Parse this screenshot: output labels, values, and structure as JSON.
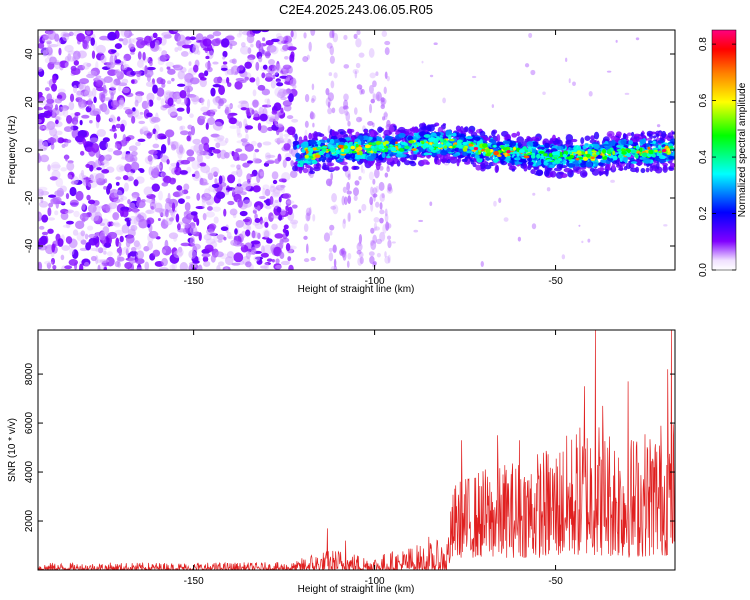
{
  "title": "C2E4.2025.243.06.05.R05",
  "colors": {
    "background": "#ffffff",
    "snr_line": "#e02020",
    "spec_main": "#7a2ee8",
    "frame": "#000000"
  },
  "chart_data": [
    {
      "type": "heatmap",
      "name": "spectrogram",
      "xlabel": "Height of straight line (km)",
      "ylabel": "Frequency (Hz)",
      "xlim": [
        -193,
        -17
      ],
      "ylim": [
        -50,
        50
      ],
      "xticks": [
        -150,
        -100,
        -50
      ],
      "yticks": [
        -40,
        -20,
        0,
        20,
        40
      ],
      "colorbar": {
        "label": "Normalized spectral amplitude",
        "range": [
          0,
          0.85
        ],
        "ticks": [
          0.0,
          0.2,
          0.4,
          0.6,
          0.8
        ],
        "colormap": [
          "#ffffff",
          "#8000ff",
          "#0000ff",
          "#00ffff",
          "#00ff00",
          "#ffff00",
          "#ff8000",
          "#ff0000",
          "#ff00ff"
        ]
      },
      "features": {
        "noise_region_x": [
          -193,
          -122
        ],
        "signal_track_x": [
          -122,
          -17
        ],
        "signal_track_freq_hz": [
          [
            -121,
            -2
          ],
          [
            -110,
            0
          ],
          [
            -100,
            1
          ],
          [
            -90,
            2
          ],
          [
            -80,
            3
          ],
          [
            -70,
            0
          ],
          [
            -60,
            -1
          ],
          [
            -50,
            -3
          ],
          [
            -40,
            -2
          ],
          [
            -30,
            -1
          ],
          [
            -17,
            0
          ]
        ],
        "peak_amplitude": 0.85
      }
    },
    {
      "type": "line",
      "name": "snr",
      "xlabel": "Height of straight line (km)",
      "ylabel": "SNR (10 * v/v)",
      "xlim": [
        -193,
        -17
      ],
      "ylim": [
        0,
        9800
      ],
      "xticks": [
        -150,
        -100,
        -50
      ],
      "yticks": [
        2000,
        4000,
        6000,
        8000
      ],
      "envelope": [
        {
          "x": -193,
          "low": 0,
          "high": 300
        },
        {
          "x": -122,
          "low": 0,
          "high": 320
        },
        {
          "x": -118,
          "low": 0,
          "high": 700
        },
        {
          "x": -110,
          "low": 0,
          "high": 900
        },
        {
          "x": -105,
          "low": 0,
          "high": 700
        },
        {
          "x": -100,
          "low": 0,
          "high": 600
        },
        {
          "x": -90,
          "low": 0,
          "high": 1000
        },
        {
          "x": -80,
          "low": 0,
          "high": 1300
        },
        {
          "x": -78,
          "low": 500,
          "high": 3600
        },
        {
          "x": -70,
          "low": 500,
          "high": 4200
        },
        {
          "x": -60,
          "low": 500,
          "high": 4600
        },
        {
          "x": -50,
          "low": 500,
          "high": 5200
        },
        {
          "x": -40,
          "low": 600,
          "high": 6400
        },
        {
          "x": -30,
          "low": 500,
          "high": 5500
        },
        {
          "x": -17,
          "low": 600,
          "high": 6500
        }
      ],
      "peaks": [
        {
          "x": -113,
          "y": 1700
        },
        {
          "x": -108,
          "y": 1200
        },
        {
          "x": -85,
          "y": 1350
        },
        {
          "x": -76,
          "y": 5300
        },
        {
          "x": -66,
          "y": 5500
        },
        {
          "x": -60,
          "y": 5300
        },
        {
          "x": -42,
          "y": 7500
        },
        {
          "x": -39,
          "y": 9800
        },
        {
          "x": -37,
          "y": 6700
        },
        {
          "x": -30,
          "y": 7700
        },
        {
          "x": -19,
          "y": 8200
        },
        {
          "x": -18,
          "y": 9800
        }
      ]
    }
  ]
}
